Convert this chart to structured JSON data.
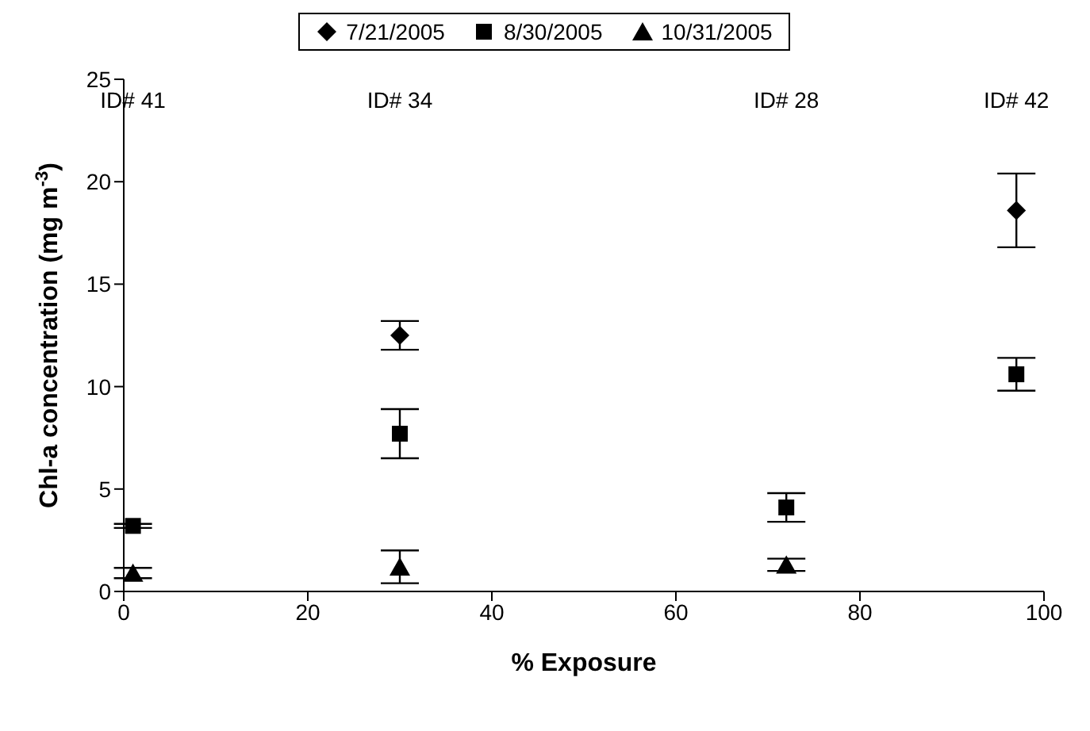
{
  "chart_data": {
    "type": "scatter",
    "xlabel": "% Exposure",
    "ylabel": "Chl-a concentration (mg m$^{-3}$)",
    "x": [
      1,
      30,
      72,
      97
    ],
    "series": [
      {
        "name": "7/21/2005",
        "color": "#000000",
        "marker": "diamond",
        "values": [
          null,
          12.5,
          null,
          18.6
        ],
        "errors": [
          null,
          0.7,
          null,
          1.8
        ]
      },
      {
        "name": "8/30/2005",
        "color": "#000000",
        "marker": "square",
        "values": [
          3.2,
          7.7,
          4.1,
          10.6
        ],
        "errors": [
          0.1,
          1.2,
          0.7,
          0.8
        ]
      },
      {
        "name": "10/31/2005",
        "color": "#000000",
        "marker": "triangle",
        "values": [
          0.9,
          1.2,
          1.3,
          null
        ],
        "errors": [
          0.25,
          0.8,
          0.3,
          null
        ]
      }
    ],
    "xlim": [
      0,
      100
    ],
    "xticks": [
      0,
      20,
      40,
      60,
      80,
      100
    ],
    "ylim": [
      0,
      25
    ],
    "yticks": [
      0,
      5,
      10,
      15,
      20,
      25
    ],
    "grid": false,
    "legend": "top",
    "annotations": [
      "ID# 41",
      "ID# 34",
      "ID# 28",
      "ID# 42"
    ]
  }
}
